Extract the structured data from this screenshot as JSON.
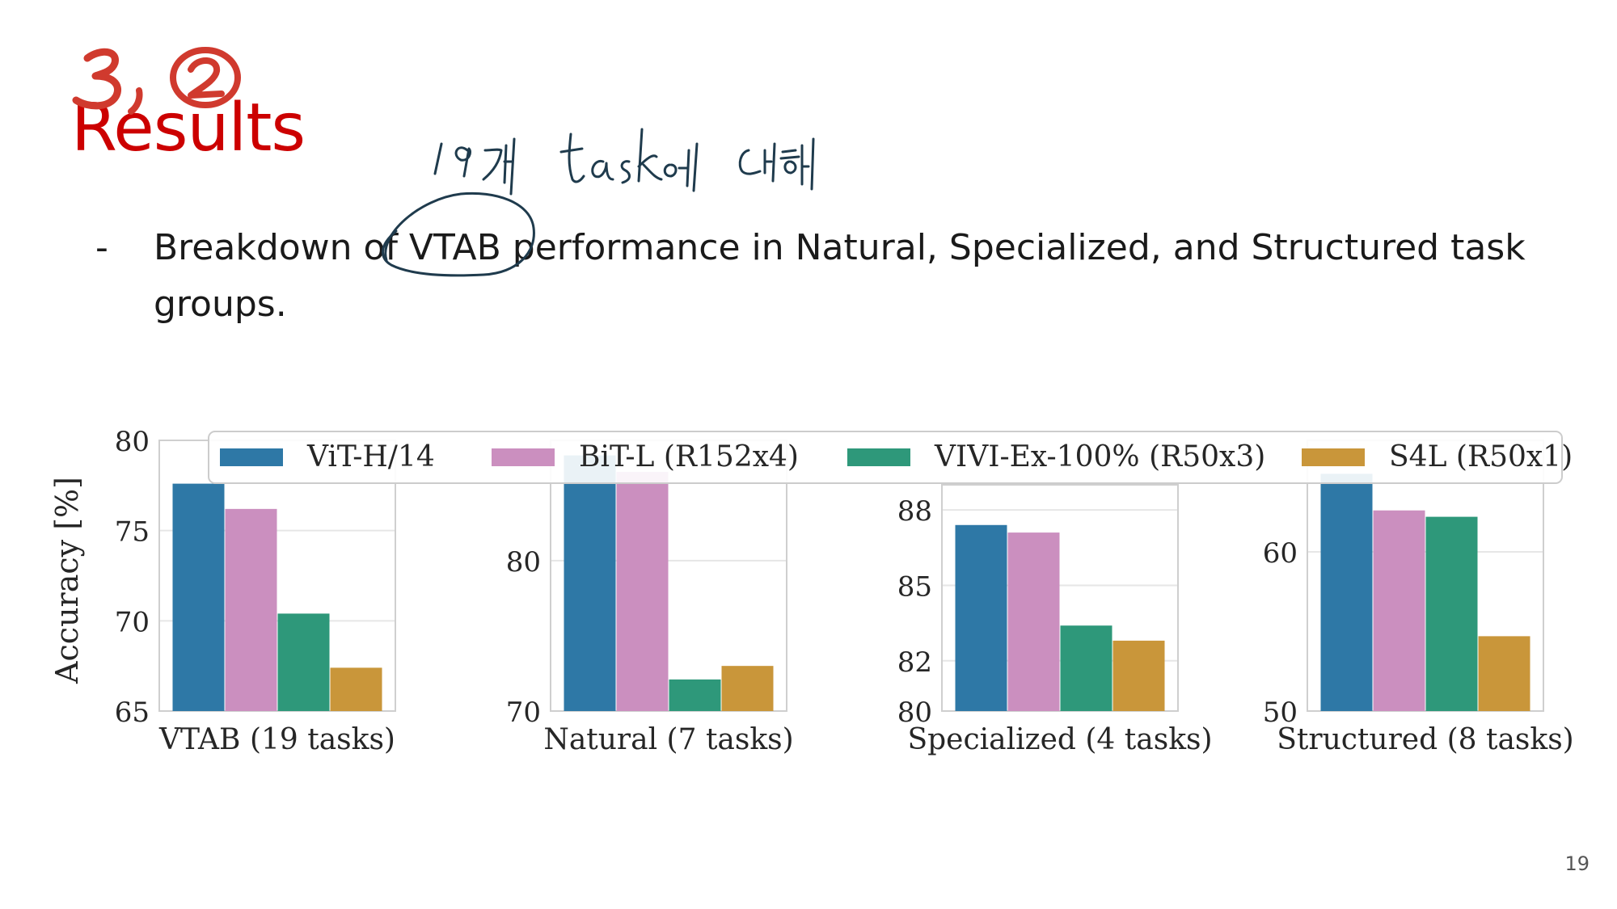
{
  "slide": {
    "title": "Results",
    "bullet_dash": "-",
    "bullet_text": "Breakdown of VTAB performance in Natural, Specialized, and Structured task groups.",
    "page_number": "19"
  },
  "annotations": {
    "title_scribble": "3.②",
    "handwritten_note": "19개 task에 대해",
    "ink_color": "#1f3b4d",
    "title_scribble_color": "#d03a2e"
  },
  "colors": {
    "vit": "#2e78a6",
    "bit": "#cb8fbf",
    "vivi": "#2e987a",
    "s4l": "#c9963a",
    "title": "#cc0000"
  },
  "chart_data": {
    "type": "bar",
    "ylabel": "Accuracy [%]",
    "legend_position": "top",
    "grid": true,
    "legend": [
      "ViT-H/14",
      "BiT-L (R152x4)",
      "VIVI-Ex-100% (R50x3)",
      "S4L (R50x1)"
    ],
    "panels": [
      {
        "name": "VTAB (19 tasks)",
        "ylim": [
          65,
          80
        ],
        "yticks": [
          65,
          70,
          75,
          80
        ],
        "values": [
          77.6,
          76.2,
          70.4,
          67.4
        ]
      },
      {
        "name": "Natural (7 tasks)",
        "ylim": [
          70,
          88
        ],
        "yticks": [
          70,
          80
        ],
        "values": [
          87.0,
          85.9,
          72.1,
          73.0
        ]
      },
      {
        "name": "Specialized (4 tasks)",
        "ylim": [
          80,
          89
        ],
        "yticks": [
          80,
          82,
          85,
          88
        ],
        "ytick_labels": [
          "80",
          "82",
          "85",
          "88"
        ],
        "values": [
          87.4,
          87.1,
          83.4,
          82.8
        ]
      },
      {
        "name": "Structured (8 tasks)",
        "ylim": [
          50,
          67
        ],
        "yticks": [
          50,
          60
        ],
        "values": [
          64.9,
          62.6,
          62.2,
          54.7
        ]
      }
    ]
  }
}
